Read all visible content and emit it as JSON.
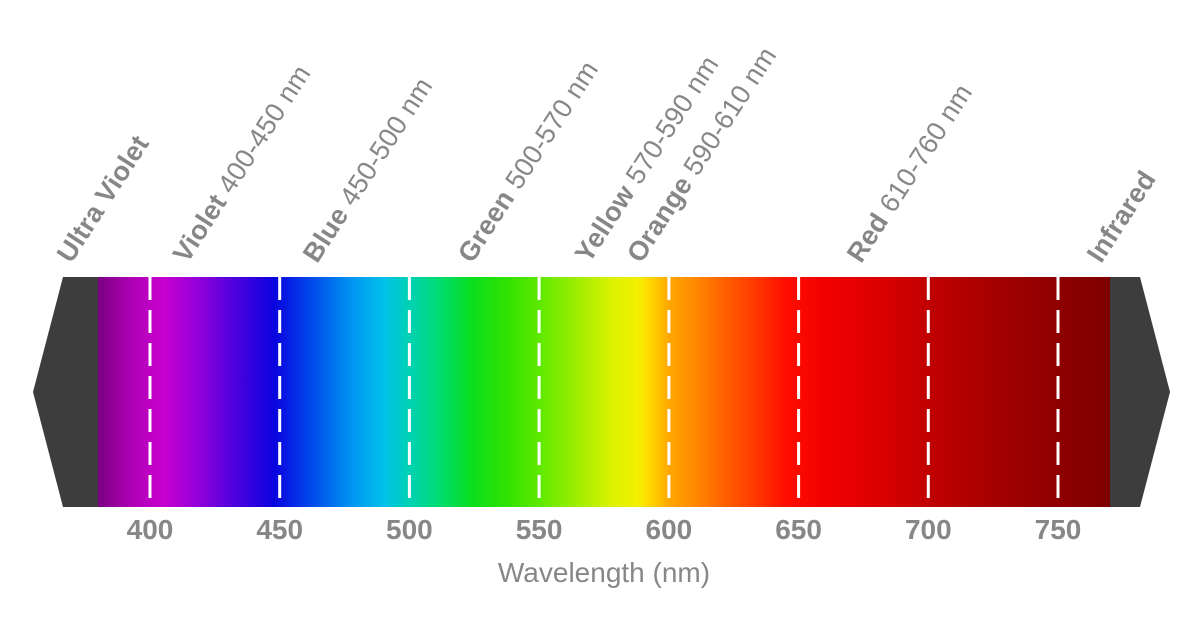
{
  "style": {
    "background": "#ffffff",
    "text_color": "#878787",
    "arrow_cap_gray": "#3d3d3d",
    "divider_color": "#ffffff"
  },
  "chart_data": {
    "type": "heatmap",
    "title": "",
    "xlabel": "Wavelength (nm)",
    "x_axis": {
      "ticks": [
        400,
        450,
        500,
        550,
        600,
        650,
        700,
        750
      ],
      "unit": "nm",
      "visible_range_nm": [
        380,
        770
      ]
    },
    "bands": [
      {
        "name": "Ultra Violet",
        "range_label": "",
        "nm_min": null,
        "nm_max": null,
        "region": "left-arrow-cap"
      },
      {
        "name": "Violet",
        "range_label": "400-450 nm",
        "nm_min": 400,
        "nm_max": 450
      },
      {
        "name": "Blue",
        "range_label": "450-500 nm",
        "nm_min": 450,
        "nm_max": 500
      },
      {
        "name": "Green",
        "range_label": "500-570 nm",
        "nm_min": 500,
        "nm_max": 570
      },
      {
        "name": "Yellow",
        "range_label": "570-590 nm",
        "nm_min": 570,
        "nm_max": 590
      },
      {
        "name": "Orange",
        "range_label": "590-610 nm",
        "nm_min": 590,
        "nm_max": 610
      },
      {
        "name": "Red",
        "range_label": "610-760 nm",
        "nm_min": 610,
        "nm_max": 760
      },
      {
        "name": "Infrared",
        "range_label": "",
        "nm_min": null,
        "nm_max": null,
        "region": "right-arrow-cap"
      }
    ],
    "gradient_stops": [
      {
        "nm": 380,
        "color": "#7a0082"
      },
      {
        "nm": 393,
        "color": "#ae00b4"
      },
      {
        "nm": 405,
        "color": "#c800ce"
      },
      {
        "nm": 418,
        "color": "#9600da"
      },
      {
        "nm": 432,
        "color": "#5000de"
      },
      {
        "nm": 448,
        "color": "#0a04de"
      },
      {
        "nm": 462,
        "color": "#0048ea"
      },
      {
        "nm": 478,
        "color": "#0096f2"
      },
      {
        "nm": 490,
        "color": "#00c0ea"
      },
      {
        "nm": 500,
        "color": "#00d2b4"
      },
      {
        "nm": 512,
        "color": "#00dc6e"
      },
      {
        "nm": 524,
        "color": "#0ade1e"
      },
      {
        "nm": 538,
        "color": "#32e200"
      },
      {
        "nm": 552,
        "color": "#66ea00"
      },
      {
        "nm": 566,
        "color": "#a4ee00"
      },
      {
        "nm": 578,
        "color": "#dcf200"
      },
      {
        "nm": 588,
        "color": "#f2f000"
      },
      {
        "nm": 592,
        "color": "#ffdc00"
      },
      {
        "nm": 600,
        "color": "#ffa800"
      },
      {
        "nm": 612,
        "color": "#ff8200"
      },
      {
        "nm": 628,
        "color": "#ff4a00"
      },
      {
        "nm": 645,
        "color": "#ff0e00"
      },
      {
        "nm": 660,
        "color": "#f20000"
      },
      {
        "nm": 680,
        "color": "#dc0000"
      },
      {
        "nm": 702,
        "color": "#be0000"
      },
      {
        "nm": 724,
        "color": "#a60000"
      },
      {
        "nm": 748,
        "color": "#900000"
      },
      {
        "nm": 770,
        "color": "#7e0000"
      }
    ]
  }
}
